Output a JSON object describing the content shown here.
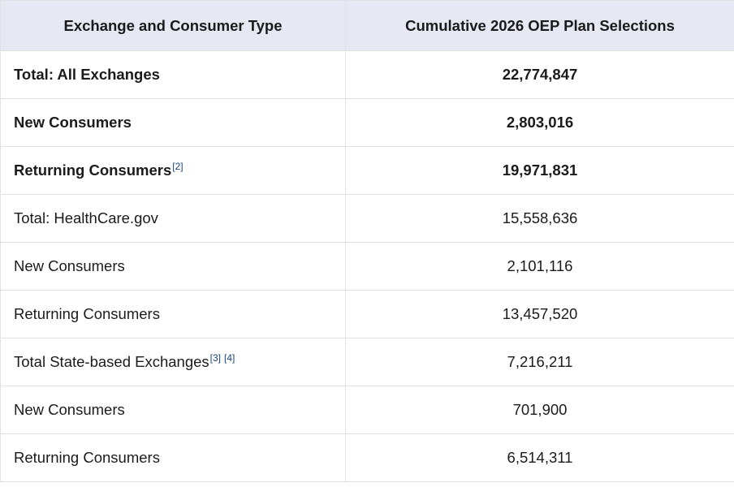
{
  "table": {
    "headers": [
      "Exchange and Consumer Type",
      "Cumulative 2026 OEP Plan Selections"
    ],
    "rows": [
      {
        "label": "Total: All Exchanges",
        "value": "22,774,847",
        "notes": []
      },
      {
        "label": "New Consumers",
        "value": "2,803,016",
        "notes": []
      },
      {
        "label": "Returning Consumers",
        "value": "19,971,831",
        "notes": [
          "[2]"
        ]
      },
      {
        "label": "Total: HealthCare.gov",
        "value": "15,558,636",
        "notes": []
      },
      {
        "label": "New Consumers",
        "value": "2,101,116",
        "notes": []
      },
      {
        "label": "Returning Consumers",
        "value": "13,457,520",
        "notes": []
      },
      {
        "label": "Total State-based Exchanges",
        "value": "7,216,211",
        "notes": [
          "[3]",
          "[4]"
        ]
      },
      {
        "label": "New Consumers",
        "value": "701,900",
        "notes": []
      },
      {
        "label": "Returning Consumers",
        "value": "6,514,311",
        "notes": []
      }
    ]
  }
}
